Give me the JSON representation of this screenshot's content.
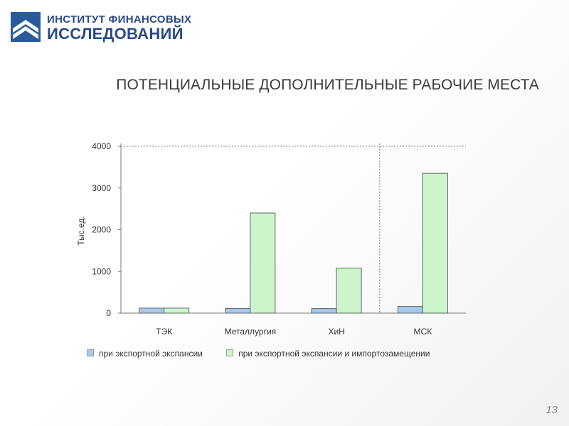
{
  "logo": {
    "line1": "ИНСТИТУТ ФИНАНСОВЫХ",
    "line2": "ИССЛЕДОВАНИЙ",
    "icon": "building-logo-icon",
    "color": "#2a4a8a"
  },
  "slide": {
    "title": "ПОТЕНЦИАЛЬНЫЕ ДОПОЛНИТЕЛЬНЫЕ РАБОЧИЕ МЕСТА",
    "page_number": "13"
  },
  "chart_data": {
    "type": "bar",
    "title": "",
    "xlabel": "",
    "ylabel": "Тыс.ед.",
    "ylim": [
      0,
      4000
    ],
    "yticks": [
      0,
      1000,
      2000,
      3000,
      4000
    ],
    "categories": [
      "ТЭК",
      "Металлургия",
      "ХиН",
      "МСК"
    ],
    "series": [
      {
        "name": "при экспортной экспансии",
        "values": [
          120,
          110,
          110,
          160
        ],
        "color": "#a8c8ec"
      },
      {
        "name": "при экспортной экспансии и импортозамещении",
        "values": [
          120,
          2400,
          1080,
          3350
        ],
        "color": "#ccf5cc"
      }
    ],
    "grid": false,
    "top_reference_line": 4000,
    "vertical_separator": "between ХиН and МСК",
    "legend_position": "bottom"
  }
}
